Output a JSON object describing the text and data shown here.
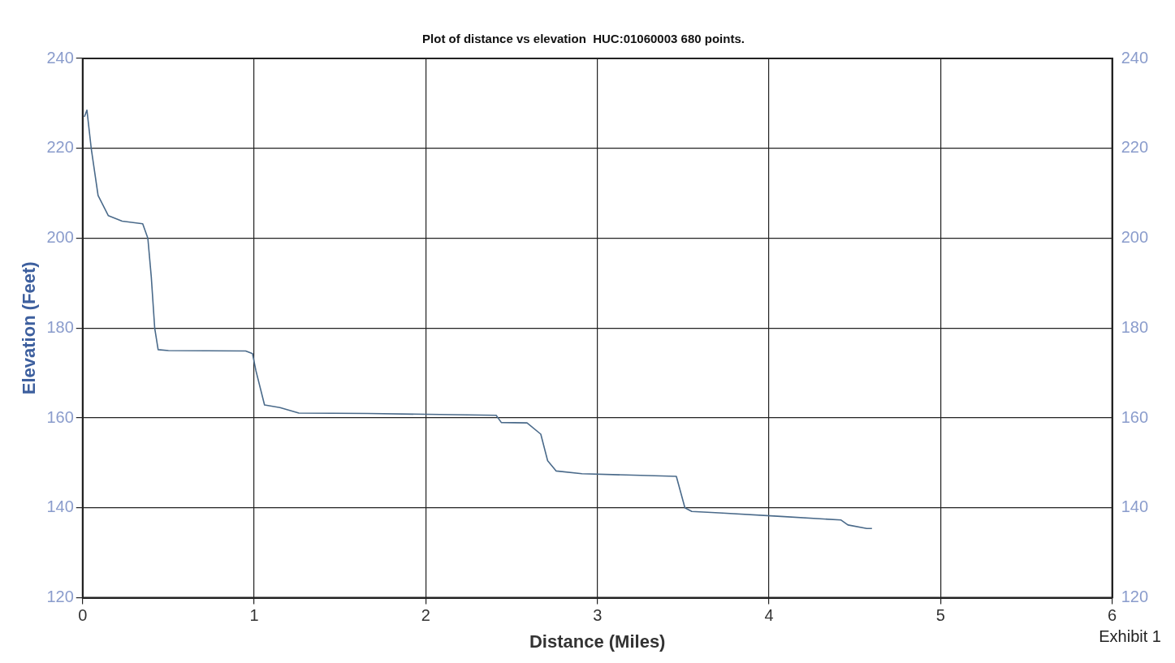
{
  "chart_data": {
    "type": "line",
    "title": "Plot of distance vs elevation  HUC:01060003 680 points.",
    "xlabel": "Distance (Miles)",
    "ylabel": "Elevation (Feet)",
    "annotations": [
      "Exhibit 1"
    ],
    "x": [
      0.01,
      0.025,
      0.05,
      0.09,
      0.15,
      0.23,
      0.35,
      0.38,
      0.4,
      0.42,
      0.44,
      0.5,
      0.95,
      0.99,
      1.01,
      1.06,
      1.15,
      1.26,
      1.66,
      2.41,
      2.44,
      2.59,
      2.67,
      2.71,
      2.76,
      2.91,
      3.46,
      3.51,
      3.55,
      3.71,
      4.07,
      4.42,
      4.46,
      4.57,
      4.6
    ],
    "series": [
      {
        "color": "#4a6a8a",
        "values": [
          227,
          228.5,
          220,
          209.5,
          205,
          203.8,
          203.2,
          200,
          191.4,
          180,
          175.2,
          175,
          174.9,
          174.3,
          170.5,
          162.9,
          162.3,
          161.1,
          161,
          160.6,
          159,
          158.9,
          156.4,
          150.5,
          148.2,
          147.6,
          147,
          140,
          139.2,
          138.9,
          138.1,
          137.3,
          136.2,
          135.4,
          135.4
        ]
      }
    ],
    "xlim": [
      0,
      6
    ],
    "xticks": [
      0,
      1,
      2,
      3,
      4,
      5,
      6
    ],
    "ylim": [
      120,
      240
    ],
    "yticks": [
      120,
      140,
      160,
      180,
      200,
      220,
      240
    ],
    "y2lim": [
      120,
      240
    ],
    "y2ticks": [
      120,
      140,
      160,
      180,
      200,
      220,
      240
    ],
    "grid": true,
    "legend": false,
    "marker": "none",
    "line_style": "solid"
  }
}
